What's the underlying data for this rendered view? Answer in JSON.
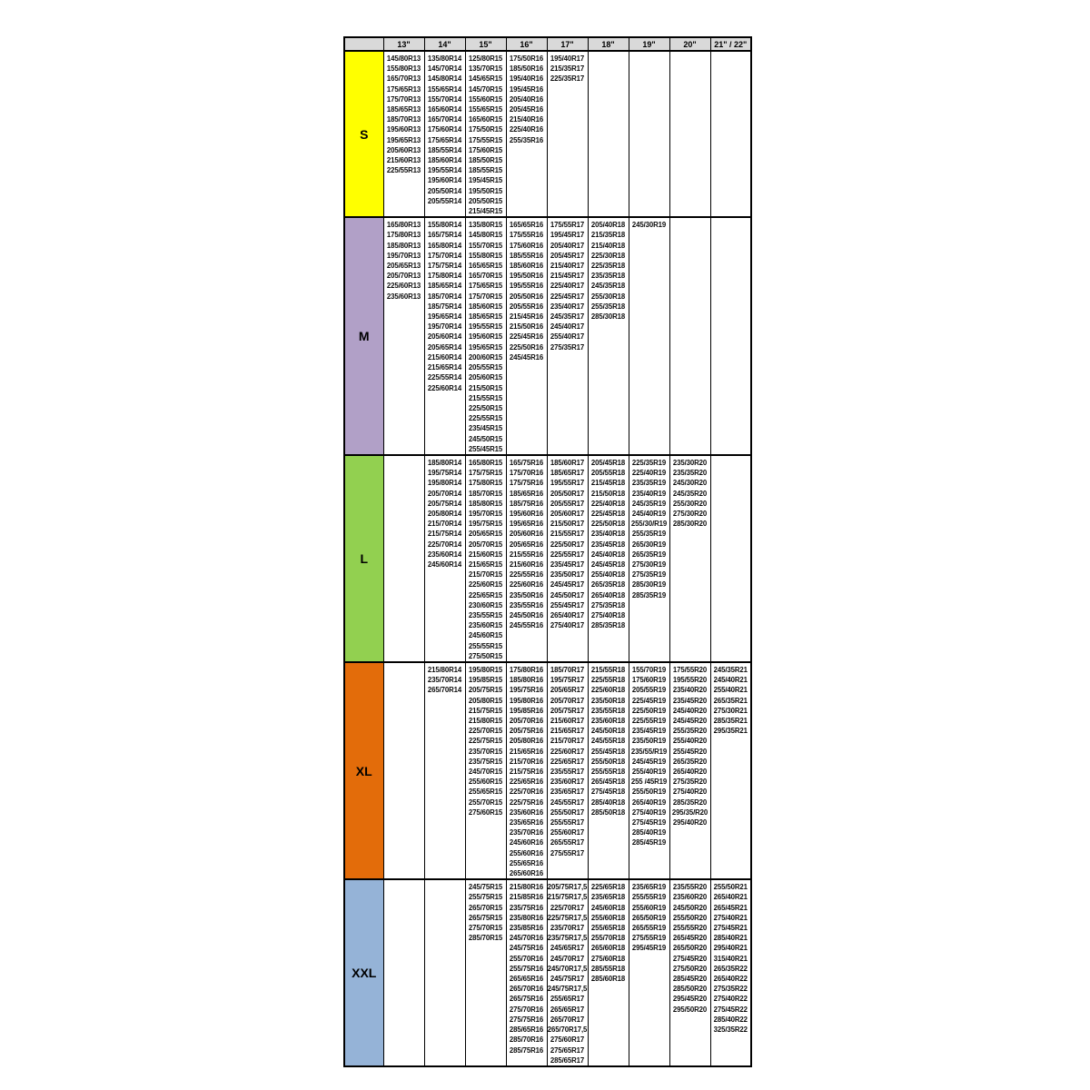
{
  "colors": {
    "header_bg": "#d9d9d9",
    "border": "#000000",
    "band_s": "#ffff00",
    "band_m": "#b1a0c7",
    "band_l": "#92d050",
    "band_xl": "#e36c0a",
    "band_xxl": "#95b3d7"
  },
  "header": {
    "corner": "",
    "columns": [
      "13\"",
      "14\"",
      "15\"",
      "16\"",
      "17\"",
      "18\"",
      "19\"",
      "20\"",
      "21\" / 22\""
    ]
  },
  "bands": [
    {
      "label": "S",
      "color": "#ffff00",
      "cells": [
        [
          "145/80R13",
          "155/80R13",
          "165/70R13",
          "175/65R13",
          "175/70R13",
          "185/65R13",
          "185/70R13",
          "195/60R13",
          "195/65R13",
          "205/60R13",
          "215/60R13",
          "225/55R13"
        ],
        [
          "135/80R14",
          "145/70R14",
          "145/80R14",
          "155/65R14",
          "155/70R14",
          "165/60R14",
          "165/70R14",
          "175/60R14",
          "175/65R14",
          "185/55R14",
          "185/60R14",
          "195/55R14",
          "195/60R14",
          "205/50R14",
          "205/55R14"
        ],
        [
          "125/80R15",
          "135/70R15",
          "145/65R15",
          "145/70R15",
          "155/60R15",
          "155/65R15",
          "165/60R15",
          "175/50R15",
          "175/55R15",
          "175/60R15",
          "185/50R15",
          "185/55R15",
          "195/45R15",
          "195/50R15",
          "205/50R15",
          "215/45R15"
        ],
        [
          "175/50R16",
          "185/50R16",
          "195/40R16",
          "195/45R16",
          "205/40R16",
          "205/45R16",
          "215/40R16",
          "225/40R16",
          "255/35R16"
        ],
        [
          "195/40R17",
          "215/35R17",
          "225/35R17"
        ],
        [],
        [],
        [],
        []
      ]
    },
    {
      "label": "M",
      "color": "#b1a0c7",
      "cells": [
        [
          "165/80R13",
          "175/80R13",
          "185/80R13",
          "195/70R13",
          "205/65R13",
          "205/70R13",
          "225/60R13",
          "235/60R13"
        ],
        [
          "155/80R14",
          "165/75R14",
          "165/80R14",
          "175/70R14",
          "175/75R14",
          "175/80R14",
          "185/65R14",
          "185/70R14",
          "185/75R14",
          "195/65R14",
          "195/70R14",
          "205/60R14",
          "205/65R14",
          "215/60R14",
          "215/65R14",
          "225/55R14",
          "225/60R14"
        ],
        [
          "135/80R15",
          "145/80R15",
          "155/70R15",
          "155/80R15",
          "165/65R15",
          "165/70R15",
          "175/65R15",
          "175/70R15",
          "185/60R15",
          "185/65R15",
          "195/55R15",
          "195/60R15",
          "195/65R15",
          "200/60R15",
          "205/55R15",
          "205/60R15",
          "215/50R15",
          "215/55R15",
          "225/50R15",
          "225/55R15",
          "235/45R15",
          "245/50R15",
          "255/45R15"
        ],
        [
          "165/65R16",
          "175/55R16",
          "175/60R16",
          "185/55R16",
          "185/60R16",
          "195/50R16",
          "195/55R16",
          "205/50R16",
          "205/55R16",
          "215/45R16",
          "215/50R16",
          "225/45R16",
          "225/50R16",
          "245/45R16"
        ],
        [
          "175/55R17",
          "195/45R17",
          "205/40R17",
          "205/45R17",
          "215/40R17",
          "215/45R17",
          "225/40R17",
          "225/45R17",
          "235/40R17",
          "245/35R17",
          "245/40R17",
          "255/40R17",
          "275/35R17"
        ],
        [
          "205/40R18",
          "215/35R18",
          "215/40R18",
          "225/30R18",
          "225/35R18",
          "235/35R18",
          "245/35R18",
          "255/30R18",
          "255/35R18",
          "285/30R18"
        ],
        [
          "245/30R19"
        ],
        [],
        []
      ]
    },
    {
      "label": "L",
      "color": "#92d050",
      "cells": [
        [],
        [
          "185/80R14",
          "195/75R14",
          "195/80R14",
          "205/70R14",
          "205/75R14",
          "205/80R14",
          "215/70R14",
          "215/75R14",
          "225/70R14",
          "235/60R14",
          "245/60R14"
        ],
        [
          "165/80R15",
          "175/75R15",
          "175/80R15",
          "185/70R15",
          "185/80R15",
          "195/70R15",
          "195/75R15",
          "205/65R15",
          "205/70R15",
          "215/60R15",
          "215/65R15",
          "215/70R15",
          "225/60R15",
          "225/65R15",
          "230/60R15",
          "235/55R15",
          "235/60R15",
          "245/60R15",
          "255/55R15",
          "275/50R15"
        ],
        [
          "165/75R16",
          "175/70R16",
          "175/75R16",
          "185/65R16",
          "185/75R16",
          "195/60R16",
          "195/65R16",
          "205/60R16",
          "205/65R16",
          "215/55R16",
          "215/60R16",
          "225/55R16",
          "225/60R16",
          "235/50R16",
          "235/55R16",
          "245/50R16",
          "245/55R16"
        ],
        [
          "185/60R17",
          "185/65R17",
          "195/55R17",
          "205/50R17",
          "205/55R17",
          "205/60R17",
          "215/50R17",
          "215/55R17",
          "225/50R17",
          "225/55R17",
          "235/45R17",
          "235/50R17",
          "245/45R17",
          "245/50R17",
          "255/45R17",
          "265/40R17",
          "275/40R17"
        ],
        [
          "205/45R18",
          "205/55R18",
          "215/45R18",
          "215/50R18",
          "225/40R18",
          "225/45R18",
          "225/50R18",
          "235/40R18",
          "235/45R18",
          "245/40R18",
          "245/45R18",
          "255/40R18",
          "265/35R18",
          "265/40R18",
          "275/35R18",
          "275/40R18",
          "285/35R18"
        ],
        [
          "225/35R19",
          "225/40R19",
          "235/35R19",
          "235/40R19",
          "245/35R19",
          "245/40R19",
          "255/30/R19",
          "255/35R19",
          "265/30R19",
          "265/35R19",
          "275/30R19",
          "275/35R19",
          "285/30R19",
          "285/35R19"
        ],
        [
          "235/30R20",
          "235/35R20",
          "245/30R20",
          "245/35R20",
          "255/30R20",
          "275/30R20",
          "285/30R20"
        ],
        []
      ]
    },
    {
      "label": "XL",
      "color": "#e36c0a",
      "cells": [
        [],
        [
          "215/80R14",
          "235/70R14",
          "265/70R14"
        ],
        [
          "195/80R15",
          "195/85R15",
          "205/75R15",
          "205/80R15",
          "215/75R15",
          "215/80R15",
          "225/70R15",
          "225/75R15",
          "235/70R15",
          "235/75R15",
          "245/70R15",
          "255/60R15",
          "255/65R15",
          "255/70R15",
          "275/60R15"
        ],
        [
          "175/80R16",
          "185/80R16",
          "195/75R16",
          "195/80R16",
          "195/85R16",
          "205/70R16",
          "205/75R16",
          "205/80R16",
          "215/65R16",
          "215/70R16",
          "215/75R16",
          "225/65R16",
          "225/70R16",
          "225/75R16",
          "235/60R16",
          "235/65R16",
          "235/70R16",
          "245/60R16",
          "255/60R16",
          "255/65R16",
          "265/60R16"
        ],
        [
          "185/70R17",
          "195/75R17",
          "205/65R17",
          "205/70R17",
          "205/75R17",
          "215/60R17",
          "215/65R17",
          "215/70R17",
          "225/60R17",
          "225/65R17",
          "235/55R17",
          "235/60R17",
          "235/65R17",
          "245/55R17",
          "255/50R17",
          "255/55R17",
          "255/60R17",
          "265/55R17",
          "275/55R17"
        ],
        [
          "215/55R18",
          "225/55R18",
          "225/60R18",
          "235/50R18",
          "235/55R18",
          "235/60R18",
          "245/50R18",
          "245/55R18",
          "255/45R18",
          "255/50R18",
          "255/55R18",
          "265/45R18",
          "275/45R18",
          "285/40R18",
          "285/50R18"
        ],
        [
          "155/70R19",
          "175/60R19",
          "205/55R19",
          "225/45R19",
          "225/50R19",
          "225/55R19",
          "235/45R19",
          "235/50R19",
          "235/55/R19",
          "245/45R19",
          "255/40R19",
          "255 /45R19",
          "255/50R19",
          "265/40R19",
          "275/40R19",
          "275/45R19",
          "285/40R19",
          "285/45R19"
        ],
        [
          "175/55R20",
          "195/55R20",
          "235/40R20",
          "235/45R20",
          "245/40R20",
          "245/45R20",
          "255/35R20",
          "255/40R20",
          "255/45R20",
          "265/35R20",
          "265/40R20",
          "275/35R20",
          "275/40R20",
          "285/35R20",
          "295/35/R20",
          "295/40R20"
        ],
        [
          "245/35R21",
          "245/40R21",
          "255/40R21",
          "265/35R21",
          "275/30R21",
          "285/35R21",
          "295/35R21"
        ]
      ]
    },
    {
      "label": "XXL",
      "color": "#95b3d7",
      "cells": [
        [],
        [],
        [
          "245/75R15",
          "255/75R15",
          "265/70R15",
          "265/75R15",
          "275/70R15",
          "285/70R15"
        ],
        [
          "215/80R16",
          "215/85R16",
          "235/75R16",
          "235/80R16",
          "235/85R16",
          "245/70R16",
          "245/75R16",
          "255/70R16",
          "255/75R16",
          "265/65R16",
          "265/70R16",
          "265/75R16",
          "275/70R16",
          "275/75R16",
          "285/65R16",
          "285/70R16",
          "285/75R16"
        ],
        [
          "205/75R17,5",
          "215/75R17,5",
          "225/70R17",
          "225/75R17,5",
          "235/70R17",
          "235/75R17,5",
          "245/65R17",
          "245/70R17",
          "245/70R17,5",
          "245/75R17",
          "245/75R17,5",
          "255/65R17",
          "265/65R17",
          "265/70R17",
          "265/70R17,5",
          "275/60R17",
          "275/65R17",
          "285/65R17"
        ],
        [
          "225/65R18",
          "235/65R18",
          "245/60R18",
          "255/60R18",
          "255/65R18",
          "255/70R18",
          "265/60R18",
          "275/60R18",
          "285/55R18",
          "285/60R18"
        ],
        [
          "235/65R19",
          "255/55R19",
          "255/60R19",
          "265/50R19",
          "265/55R19",
          "275/55R19",
          "295/45R19"
        ],
        [
          "235/55R20",
          "235/60R20",
          "245/50R20",
          "255/50R20",
          "255/55R20",
          "265/45R20",
          "265/50R20",
          "275/45R20",
          "275/50R20",
          "285/45R20",
          "285/50R20",
          "295/45R20",
          "295/50R20"
        ],
        [
          "255/50R21",
          "265/40R21",
          "265/45R21",
          "275/40R21",
          "275/45R21",
          "285/40R21",
          "295/40R21",
          "315/40R21",
          "265/35R22",
          "265/40R22",
          "275/35R22",
          "275/40R22",
          "275/45R22",
          "285/40R22",
          "325/35R22"
        ]
      ]
    }
  ]
}
